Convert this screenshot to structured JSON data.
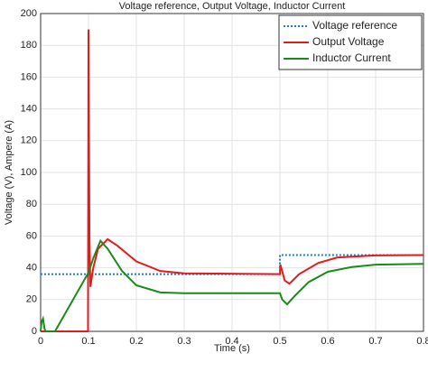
{
  "chart_data": {
    "type": "line",
    "title": "Voltage reference, Output Voltage, Inductor Current",
    "x_label": "Time (s)",
    "y_label": "Voltage (V), Ampere (A)",
    "xlim": [
      0,
      0.8
    ],
    "ylim": [
      0,
      200
    ],
    "xticks": [
      0,
      0.1,
      0.2,
      0.3,
      0.4,
      0.5,
      0.6,
      0.7,
      0.8
    ],
    "yticks": [
      0,
      20,
      40,
      60,
      80,
      100,
      120,
      140,
      160,
      180,
      200
    ],
    "grid": true,
    "legend": "upper right",
    "series": [
      {
        "name": "Voltage reference",
        "color": "#1f77d0",
        "dash": "dotted",
        "x": [
          0,
          0.5,
          0.5,
          0.8
        ],
        "values": [
          36,
          36,
          48,
          48
        ]
      },
      {
        "name": "Output Voltage",
        "color": "#e41a1c",
        "x": [
          0,
          0.099,
          0.1,
          0.102,
          0.104,
          0.11,
          0.12,
          0.14,
          0.16,
          0.2,
          0.25,
          0.3,
          0.5,
          0.501,
          0.51,
          0.52,
          0.54,
          0.58,
          0.62,
          0.7,
          0.8
        ],
        "values": [
          0,
          0,
          190,
          60,
          28,
          40,
          52,
          58,
          54,
          44,
          38,
          36.5,
          36,
          42,
          32,
          30,
          36,
          43,
          46.5,
          47.8,
          48
        ]
      },
      {
        "name": "Inductor Current",
        "color": "#1a8a1a",
        "x": [
          0,
          0.002,
          0.005,
          0.008,
          0.01,
          0.03,
          0.1,
          0.11,
          0.125,
          0.14,
          0.17,
          0.2,
          0.25,
          0.3,
          0.5,
          0.505,
          0.515,
          0.53,
          0.56,
          0.6,
          0.65,
          0.7,
          0.8
        ],
        "values": [
          0,
          6,
          8,
          2,
          0,
          0,
          37,
          46,
          57,
          52,
          38,
          29,
          24.5,
          24,
          24,
          20,
          17,
          22,
          31,
          37.5,
          40.5,
          42,
          42.5
        ]
      }
    ]
  }
}
